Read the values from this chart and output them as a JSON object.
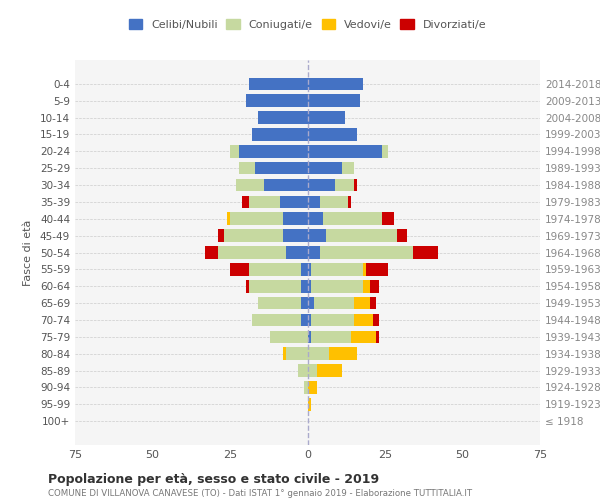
{
  "age_groups": [
    "100+",
    "95-99",
    "90-94",
    "85-89",
    "80-84",
    "75-79",
    "70-74",
    "65-69",
    "60-64",
    "55-59",
    "50-54",
    "45-49",
    "40-44",
    "35-39",
    "30-34",
    "25-29",
    "20-24",
    "15-19",
    "10-14",
    "5-9",
    "0-4"
  ],
  "birth_years": [
    "≤ 1918",
    "1919-1923",
    "1924-1928",
    "1929-1933",
    "1934-1938",
    "1939-1943",
    "1944-1948",
    "1949-1953",
    "1954-1958",
    "1959-1963",
    "1964-1968",
    "1969-1973",
    "1974-1978",
    "1979-1983",
    "1984-1988",
    "1989-1993",
    "1994-1998",
    "1999-2003",
    "2004-2008",
    "2009-2013",
    "2014-2018"
  ],
  "male": {
    "celibi": [
      0,
      0,
      0,
      0,
      0,
      0,
      2,
      2,
      2,
      2,
      7,
      8,
      8,
      9,
      14,
      17,
      22,
      18,
      16,
      20,
      19
    ],
    "coniugati": [
      0,
      0,
      1,
      3,
      7,
      12,
      16,
      14,
      17,
      17,
      22,
      19,
      17,
      10,
      9,
      5,
      3,
      0,
      0,
      0,
      0
    ],
    "vedovi": [
      0,
      0,
      0,
      0,
      1,
      0,
      0,
      0,
      0,
      0,
      0,
      0,
      1,
      0,
      0,
      0,
      0,
      0,
      0,
      0,
      0
    ],
    "divorziati": [
      0,
      0,
      0,
      0,
      0,
      0,
      0,
      0,
      1,
      6,
      4,
      2,
      0,
      2,
      0,
      0,
      0,
      0,
      0,
      0,
      0
    ]
  },
  "female": {
    "nubili": [
      0,
      0,
      0,
      0,
      0,
      1,
      1,
      2,
      1,
      1,
      4,
      6,
      5,
      4,
      9,
      11,
      24,
      16,
      12,
      17,
      18
    ],
    "coniugate": [
      0,
      0,
      0,
      3,
      7,
      13,
      14,
      13,
      17,
      17,
      30,
      23,
      19,
      9,
      6,
      4,
      2,
      0,
      0,
      0,
      0
    ],
    "vedove": [
      0,
      1,
      3,
      8,
      9,
      8,
      6,
      5,
      2,
      1,
      0,
      0,
      0,
      0,
      0,
      0,
      0,
      0,
      0,
      0,
      0
    ],
    "divorziate": [
      0,
      0,
      0,
      0,
      0,
      1,
      2,
      2,
      3,
      7,
      8,
      3,
      4,
      1,
      1,
      0,
      0,
      0,
      0,
      0,
      0
    ]
  },
  "colors": {
    "celibi": "#4472c4",
    "coniugati": "#c6d9a0",
    "vedovi": "#ffc000",
    "divorziati": "#cc0000"
  },
  "xlim": 75,
  "title": "Popolazione per età, sesso e stato civile - 2019",
  "subtitle": "COMUNE DI VILLANOVA CANAVESE (TO) - Dati ISTAT 1° gennaio 2019 - Elaborazione TUTTITALIA.IT",
  "ylabel_left": "Fasce di età",
  "legend_labels": [
    "Celibi/Nubili",
    "Coniugati/e",
    "Vedovi/e",
    "Divorziati/e"
  ],
  "bg_color": "#f5f5f5",
  "grid_color": "#cccccc"
}
